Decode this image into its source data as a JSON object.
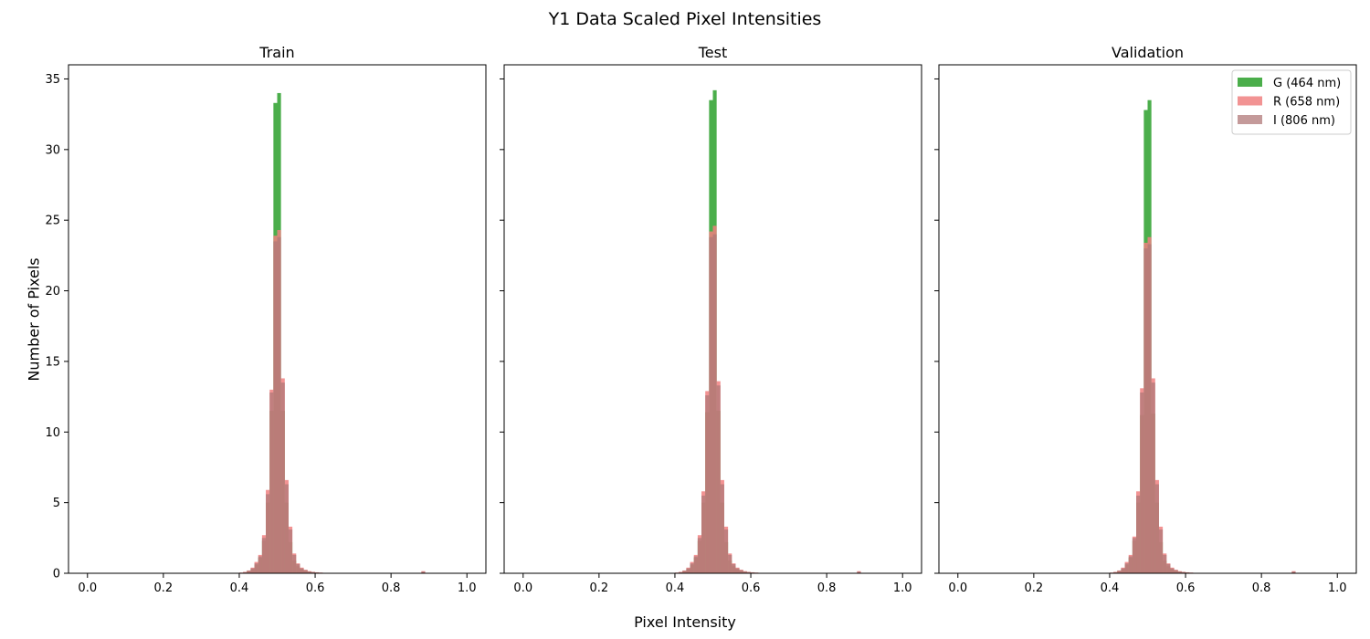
{
  "figure": {
    "title": "Y1 Data Scaled Pixel Intensities",
    "xlabel": "Pixel Intensity",
    "ylabel": "Number of Pixels"
  },
  "chart_data": [
    {
      "type": "histogram",
      "title": "Train",
      "xlim": [
        -0.05,
        1.05
      ],
      "ylim": [
        0,
        36
      ],
      "xticks": [
        "0.0",
        "0.2",
        "0.4",
        "0.6",
        "0.8",
        "1.0"
      ],
      "yticks": [
        "0",
        "5",
        "10",
        "15",
        "20",
        "25",
        "30",
        "35"
      ],
      "bin_width": 0.01,
      "legend": false,
      "series": [
        {
          "name": "G (464 nm)",
          "color": "#2ca02c",
          "opacity": 0.85,
          "bins": [
            [
              0.4,
              0.02
            ],
            [
              0.41,
              0.05
            ],
            [
              0.42,
              0.15
            ],
            [
              0.43,
              0.3
            ],
            [
              0.44,
              0.6
            ],
            [
              0.45,
              1.1
            ],
            [
              0.46,
              2.3
            ],
            [
              0.47,
              5.0
            ],
            [
              0.48,
              11.5
            ],
            [
              0.49,
              33.3
            ],
            [
              0.5,
              34.0
            ],
            [
              0.51,
              11.5
            ],
            [
              0.52,
              5.0
            ],
            [
              0.53,
              2.2
            ],
            [
              0.54,
              0.9
            ],
            [
              0.55,
              0.5
            ],
            [
              0.56,
              0.3
            ],
            [
              0.57,
              0.2
            ],
            [
              0.58,
              0.12
            ],
            [
              0.59,
              0.08
            ],
            [
              0.6,
              0.05
            ],
            [
              0.61,
              0.03
            ],
            [
              0.62,
              0.02
            ]
          ]
        },
        {
          "name": "R (658 nm)",
          "color": "#f08080",
          "opacity": 0.85,
          "bins": [
            [
              0.4,
              0.05
            ],
            [
              0.41,
              0.1
            ],
            [
              0.42,
              0.2
            ],
            [
              0.43,
              0.4
            ],
            [
              0.44,
              0.8
            ],
            [
              0.45,
              1.3
            ],
            [
              0.46,
              2.7
            ],
            [
              0.47,
              5.9
            ],
            [
              0.48,
              13.0
            ],
            [
              0.49,
              23.9
            ],
            [
              0.5,
              24.3
            ],
            [
              0.51,
              13.8
            ],
            [
              0.52,
              6.6
            ],
            [
              0.53,
              3.3
            ],
            [
              0.54,
              1.4
            ],
            [
              0.55,
              0.7
            ],
            [
              0.56,
              0.4
            ],
            [
              0.57,
              0.25
            ],
            [
              0.58,
              0.15
            ],
            [
              0.59,
              0.1
            ],
            [
              0.6,
              0.07
            ],
            [
              0.61,
              0.05
            ],
            [
              0.62,
              0.03
            ],
            [
              0.88,
              0.15
            ]
          ]
        },
        {
          "name": "I (806 nm)",
          "color": "#b07878",
          "opacity": 0.75,
          "bins": [
            [
              0.4,
              0.04
            ],
            [
              0.41,
              0.08
            ],
            [
              0.42,
              0.18
            ],
            [
              0.43,
              0.35
            ],
            [
              0.44,
              0.7
            ],
            [
              0.45,
              1.2
            ],
            [
              0.46,
              2.5
            ],
            [
              0.47,
              5.6
            ],
            [
              0.48,
              12.8
            ],
            [
              0.49,
              23.5
            ],
            [
              0.5,
              23.8
            ],
            [
              0.51,
              13.5
            ],
            [
              0.52,
              6.3
            ],
            [
              0.53,
              3.1
            ],
            [
              0.54,
              1.3
            ],
            [
              0.55,
              0.65
            ],
            [
              0.56,
              0.35
            ],
            [
              0.57,
              0.22
            ],
            [
              0.58,
              0.13
            ],
            [
              0.59,
              0.09
            ],
            [
              0.6,
              0.06
            ],
            [
              0.61,
              0.04
            ],
            [
              0.62,
              0.02
            ],
            [
              0.88,
              0.12
            ]
          ]
        }
      ]
    },
    {
      "type": "histogram",
      "title": "Test",
      "xlim": [
        -0.05,
        1.05
      ],
      "ylim": [
        0,
        36
      ],
      "xticks": [
        "0.0",
        "0.2",
        "0.4",
        "0.6",
        "0.8",
        "1.0"
      ],
      "yticks": [],
      "bin_width": 0.01,
      "legend": false,
      "series": [
        {
          "name": "G (464 nm)",
          "color": "#2ca02c",
          "opacity": 0.85,
          "bins": [
            [
              0.4,
              0.02
            ],
            [
              0.41,
              0.05
            ],
            [
              0.42,
              0.15
            ],
            [
              0.43,
              0.3
            ],
            [
              0.44,
              0.6
            ],
            [
              0.45,
              1.1
            ],
            [
              0.46,
              2.3
            ],
            [
              0.47,
              5.0
            ],
            [
              0.48,
              11.4
            ],
            [
              0.49,
              33.5
            ],
            [
              0.5,
              34.2
            ],
            [
              0.51,
              11.5
            ],
            [
              0.52,
              5.0
            ],
            [
              0.53,
              2.2
            ],
            [
              0.54,
              0.9
            ],
            [
              0.55,
              0.5
            ],
            [
              0.56,
              0.3
            ],
            [
              0.57,
              0.2
            ],
            [
              0.58,
              0.12
            ],
            [
              0.59,
              0.08
            ],
            [
              0.6,
              0.05
            ],
            [
              0.61,
              0.03
            ],
            [
              0.62,
              0.02
            ]
          ]
        },
        {
          "name": "R (658 nm)",
          "color": "#f08080",
          "opacity": 0.85,
          "bins": [
            [
              0.4,
              0.05
            ],
            [
              0.41,
              0.1
            ],
            [
              0.42,
              0.2
            ],
            [
              0.43,
              0.4
            ],
            [
              0.44,
              0.8
            ],
            [
              0.45,
              1.3
            ],
            [
              0.46,
              2.7
            ],
            [
              0.47,
              5.8
            ],
            [
              0.48,
              12.9
            ],
            [
              0.49,
              24.2
            ],
            [
              0.5,
              24.6
            ],
            [
              0.51,
              13.6
            ],
            [
              0.52,
              6.6
            ],
            [
              0.53,
              3.3
            ],
            [
              0.54,
              1.4
            ],
            [
              0.55,
              0.7
            ],
            [
              0.56,
              0.4
            ],
            [
              0.57,
              0.25
            ],
            [
              0.58,
              0.15
            ],
            [
              0.59,
              0.1
            ],
            [
              0.6,
              0.07
            ],
            [
              0.61,
              0.05
            ],
            [
              0.62,
              0.03
            ],
            [
              0.88,
              0.15
            ]
          ]
        },
        {
          "name": "I (806 nm)",
          "color": "#b07878",
          "opacity": 0.75,
          "bins": [
            [
              0.4,
              0.04
            ],
            [
              0.41,
              0.08
            ],
            [
              0.42,
              0.18
            ],
            [
              0.43,
              0.35
            ],
            [
              0.44,
              0.7
            ],
            [
              0.45,
              1.2
            ],
            [
              0.46,
              2.5
            ],
            [
              0.47,
              5.5
            ],
            [
              0.48,
              12.6
            ],
            [
              0.49,
              23.8
            ],
            [
              0.5,
              24.0
            ],
            [
              0.51,
              13.3
            ],
            [
              0.52,
              6.3
            ],
            [
              0.53,
              3.1
            ],
            [
              0.54,
              1.3
            ],
            [
              0.55,
              0.65
            ],
            [
              0.56,
              0.35
            ],
            [
              0.57,
              0.22
            ],
            [
              0.58,
              0.13
            ],
            [
              0.59,
              0.09
            ],
            [
              0.6,
              0.06
            ],
            [
              0.61,
              0.04
            ],
            [
              0.62,
              0.02
            ],
            [
              0.88,
              0.12
            ]
          ]
        }
      ]
    },
    {
      "type": "histogram",
      "title": "Validation",
      "xlim": [
        -0.05,
        1.05
      ],
      "ylim": [
        0,
        36
      ],
      "xticks": [
        "0.0",
        "0.2",
        "0.4",
        "0.6",
        "0.8",
        "1.0"
      ],
      "yticks": [],
      "bin_width": 0.01,
      "legend": true,
      "legend_position": "top-right",
      "series": [
        {
          "name": "G (464 nm)",
          "color": "#2ca02c",
          "opacity": 0.85,
          "bins": [
            [
              0.4,
              0.02
            ],
            [
              0.41,
              0.05
            ],
            [
              0.42,
              0.15
            ],
            [
              0.43,
              0.3
            ],
            [
              0.44,
              0.6
            ],
            [
              0.45,
              1.1
            ],
            [
              0.46,
              2.3
            ],
            [
              0.47,
              5.0
            ],
            [
              0.48,
              11.2
            ],
            [
              0.49,
              32.8
            ],
            [
              0.5,
              33.5
            ],
            [
              0.51,
              11.3
            ],
            [
              0.52,
              5.0
            ],
            [
              0.53,
              2.2
            ],
            [
              0.54,
              0.9
            ],
            [
              0.55,
              0.5
            ],
            [
              0.56,
              0.3
            ],
            [
              0.57,
              0.2
            ],
            [
              0.58,
              0.12
            ],
            [
              0.59,
              0.08
            ],
            [
              0.6,
              0.05
            ],
            [
              0.61,
              0.03
            ],
            [
              0.62,
              0.02
            ]
          ]
        },
        {
          "name": "R (658 nm)",
          "color": "#f08080",
          "opacity": 0.85,
          "bins": [
            [
              0.4,
              0.05
            ],
            [
              0.41,
              0.1
            ],
            [
              0.42,
              0.2
            ],
            [
              0.43,
              0.4
            ],
            [
              0.44,
              0.8
            ],
            [
              0.45,
              1.3
            ],
            [
              0.46,
              2.6
            ],
            [
              0.47,
              5.8
            ],
            [
              0.48,
              13.1
            ],
            [
              0.49,
              23.4
            ],
            [
              0.5,
              23.8
            ],
            [
              0.51,
              13.8
            ],
            [
              0.52,
              6.6
            ],
            [
              0.53,
              3.3
            ],
            [
              0.54,
              1.4
            ],
            [
              0.55,
              0.7
            ],
            [
              0.56,
              0.4
            ],
            [
              0.57,
              0.25
            ],
            [
              0.58,
              0.15
            ],
            [
              0.59,
              0.1
            ],
            [
              0.6,
              0.07
            ],
            [
              0.61,
              0.05
            ],
            [
              0.62,
              0.03
            ],
            [
              0.88,
              0.15
            ]
          ]
        },
        {
          "name": "I (806 nm)",
          "color": "#b07878",
          "opacity": 0.75,
          "bins": [
            [
              0.4,
              0.04
            ],
            [
              0.41,
              0.08
            ],
            [
              0.42,
              0.18
            ],
            [
              0.43,
              0.35
            ],
            [
              0.44,
              0.7
            ],
            [
              0.45,
              1.2
            ],
            [
              0.46,
              2.5
            ],
            [
              0.47,
              5.5
            ],
            [
              0.48,
              12.8
            ],
            [
              0.49,
              23.0
            ],
            [
              0.5,
              23.3
            ],
            [
              0.51,
              13.5
            ],
            [
              0.52,
              6.3
            ],
            [
              0.53,
              3.1
            ],
            [
              0.54,
              1.3
            ],
            [
              0.55,
              0.65
            ],
            [
              0.56,
              0.35
            ],
            [
              0.57,
              0.22
            ],
            [
              0.58,
              0.13
            ],
            [
              0.59,
              0.09
            ],
            [
              0.6,
              0.06
            ],
            [
              0.61,
              0.04
            ],
            [
              0.62,
              0.02
            ],
            [
              0.88,
              0.12
            ]
          ]
        }
      ]
    }
  ]
}
